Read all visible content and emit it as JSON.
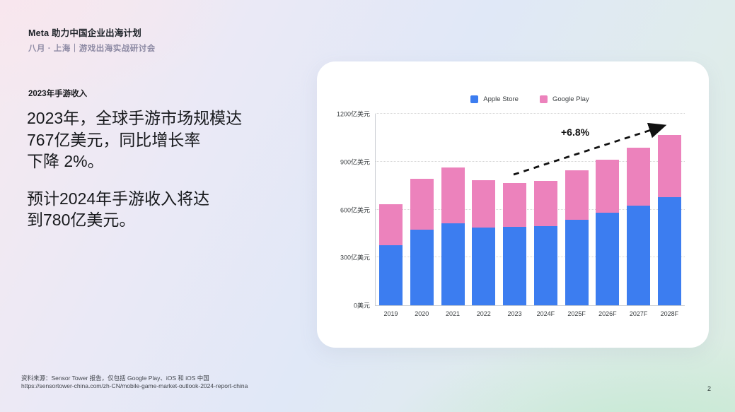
{
  "header": {
    "title": "Meta 助力中国企业出海计划",
    "subtitle": "八月 · 上海｜游戏出海实战研讨会"
  },
  "content": {
    "kicker": "2023年手游收入",
    "paragraph1": {
      "line1": "2023年，全球手游市场规模达",
      "line2": "767亿美元，同比增长率",
      "line3": "下降 2%。"
    },
    "paragraph2": {
      "line1": "预计2024年手游收入将达",
      "line2": "到780亿美元。"
    }
  },
  "chart_data": {
    "type": "bar",
    "stacked": true,
    "title": "",
    "categories": [
      "2019",
      "2020",
      "2021",
      "2022",
      "2023",
      "2024F",
      "2025F",
      "2026F",
      "2027F",
      "2028F"
    ],
    "series": [
      {
        "name": "Apple Store",
        "color": "#3c7df0",
        "values": [
          375,
          475,
          515,
          487,
          490,
          497,
          538,
          582,
          624,
          678
        ]
      },
      {
        "name": "Google Play",
        "color": "#ec82bc",
        "values": [
          257,
          316,
          350,
          297,
          277,
          283,
          306,
          330,
          362,
          390
        ]
      }
    ],
    "totals": [
      632,
      791,
      865,
      784,
      767,
      780,
      844,
      912,
      986,
      1068
    ],
    "xlabel": "",
    "ylabel": "",
    "y_ticks": [
      "0美元",
      "300亿美元",
      "600亿美元",
      "900亿美元",
      "1200亿美元"
    ],
    "ylim": [
      0,
      1200
    ],
    "grid": "horizontal-dotted",
    "legend_position": "top-center",
    "annotation": {
      "label": "+6.8%",
      "style": "dashed-arrow"
    }
  },
  "footer": {
    "source_line1": "资料来源：Sensor Tower 报告，仅包括 Google Play、iOS 和 iOS 中国",
    "source_line2": "https://sensortower-china.com/zh-CN/mobile-game-market-outlook-2024-report-china",
    "page_number": "2"
  }
}
